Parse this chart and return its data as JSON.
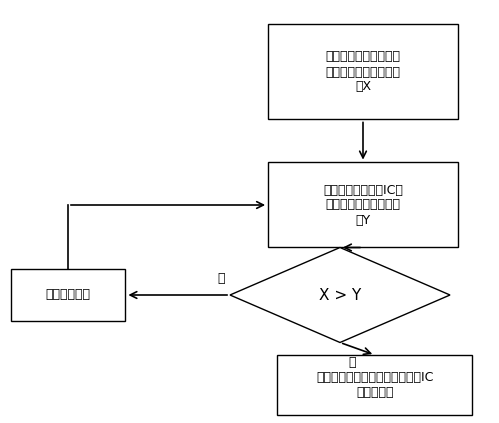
{
  "bg_color": "#ffffff",
  "box1_text": "设置电容式触摸屏整面\n单位时间内中断数的上\n限X",
  "box2_text": "电容式触摸屏控制IC检\n测屏体单位时间内中断\n数Y",
  "diamond_text": "X > Y",
  "box3_text": "将此时电容式触摸屏上报到控制IC\n的数据滤除",
  "box4_text": "上报给主芯片",
  "label_yes": "是",
  "label_no": "否",
  "line_color": "#000000",
  "box_edge_color": "#000000",
  "text_color": "#000000",
  "fontsize": 9,
  "diamond_fontsize": 11
}
